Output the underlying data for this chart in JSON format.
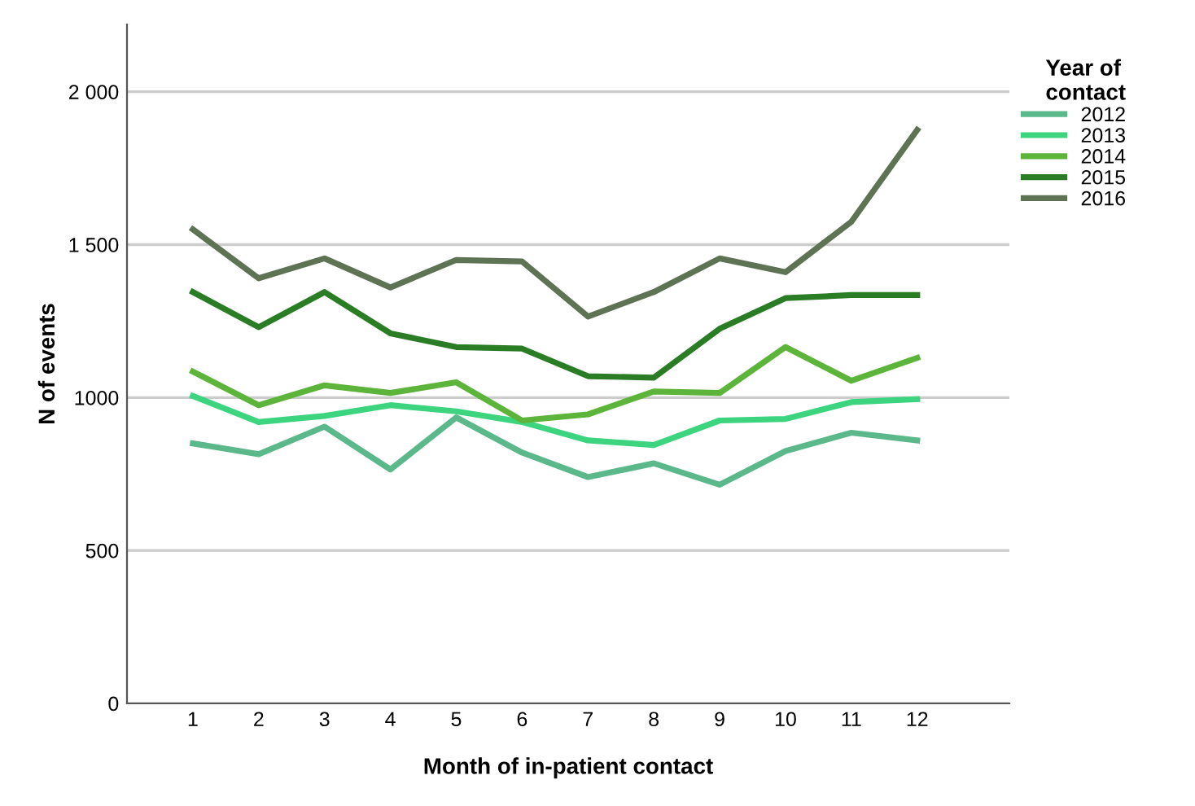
{
  "chart_data": {
    "type": "line",
    "xlabel": "Month of in-patient contact",
    "ylabel": "N of events",
    "legend_title": "Year of\ncontact",
    "legend": "right",
    "grid": "y",
    "marker": "none",
    "line_style": "solid",
    "categories": [
      "1",
      "2",
      "3",
      "4",
      "5",
      "6",
      "7",
      "8",
      "9",
      "10",
      "11",
      "12"
    ],
    "ylim": [
      0,
      2220
    ],
    "yticks": [
      0,
      500,
      1000,
      {
        "value": 1500,
        "label": "1 500"
      },
      {
        "value": 2000,
        "label": "2 000"
      }
    ],
    "series": [
      {
        "name": "2012",
        "color": "#5bb88a",
        "values": [
          850,
          815,
          905,
          765,
          935,
          820,
          740,
          785,
          715,
          825,
          885,
          860
        ]
      },
      {
        "name": "2013",
        "color": "#3dd47f",
        "values": [
          1005,
          920,
          940,
          975,
          955,
          920,
          860,
          845,
          925,
          930,
          985,
          995
        ]
      },
      {
        "name": "2014",
        "color": "#5cb53a",
        "values": [
          1085,
          975,
          1040,
          1015,
          1050,
          925,
          945,
          1020,
          1015,
          1165,
          1055,
          1130
        ]
      },
      {
        "name": "2015",
        "color": "#2a7d25",
        "values": [
          1345,
          1230,
          1345,
          1210,
          1165,
          1160,
          1070,
          1065,
          1225,
          1325,
          1335,
          1335
        ]
      },
      {
        "name": "2016",
        "color": "#5e7254",
        "values": [
          1550,
          1390,
          1455,
          1360,
          1450,
          1445,
          1265,
          1345,
          1455,
          1410,
          1575,
          1875
        ]
      }
    ]
  }
}
